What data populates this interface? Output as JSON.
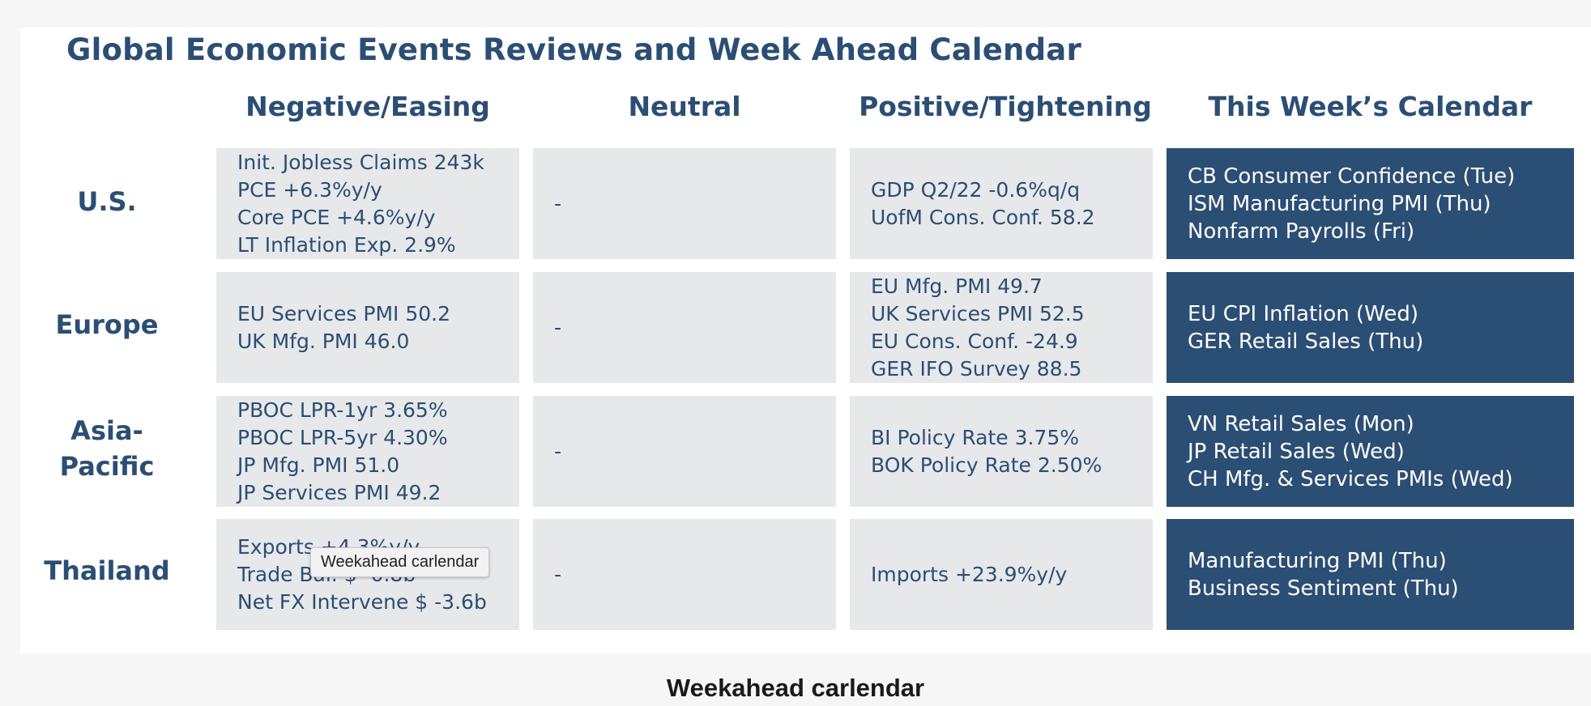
{
  "title": "Global Economic Events Reviews and Week Ahead Calendar",
  "columns": [
    "Negative/Easing",
    "Neutral",
    "Positive/Tightening",
    "This Week’s Calendar"
  ],
  "rows": [
    {
      "label": [
        "U.S."
      ],
      "negative": [
        "Init. Jobless Claims 243k",
        "PCE +6.3%y/y",
        "Core PCE +4.6%y/y",
        "LT Inflation Exp. 2.9%"
      ],
      "neutral": [
        "-"
      ],
      "positive": [
        "GDP Q2/22 -0.6%q/q",
        "UofM Cons. Conf. 58.2"
      ],
      "calendar": [
        "CB Consumer Confidence (Tue)",
        "ISM Manufacturing PMI (Thu)",
        "Nonfarm Payrolls (Fri)"
      ]
    },
    {
      "label": [
        "Europe"
      ],
      "negative": [
        "EU Services PMI 50.2",
        "UK Mfg. PMI 46.0"
      ],
      "neutral": [
        "-"
      ],
      "positive": [
        "EU Mfg. PMI 49.7",
        "UK Services PMI 52.5",
        "EU Cons. Conf. -24.9",
        "GER IFO Survey 88.5"
      ],
      "calendar": [
        "EU CPI Inflation (Wed)",
        "GER Retail Sales (Thu)"
      ]
    },
    {
      "label": [
        "Asia-",
        "Pacific"
      ],
      "negative": [
        "PBOC LPR-1yr 3.65%",
        "PBOC LPR-5yr 4.30%",
        "JP Mfg. PMI 51.0",
        "JP Services PMI 49.2"
      ],
      "neutral": [
        "-"
      ],
      "positive": [
        "BI Policy Rate 3.75%",
        "BOK Policy Rate 2.50%"
      ],
      "calendar": [
        "VN Retail Sales (Mon)",
        "JP Retail Sales (Wed)",
        "CH Mfg. & Services PMIs (Wed)"
      ]
    },
    {
      "label": [
        "Thailand"
      ],
      "negative": [
        "Exports +4.3%y/y",
        "Trade Bal. $ -0.8b",
        "Net FX Intervene $ -3.6b"
      ],
      "neutral": [
        "-"
      ],
      "positive": [
        "Imports +23.9%y/y"
      ],
      "calendar": [
        "Manufacturing PMI (Thu)",
        "Business Sentiment (Thu)"
      ]
    }
  ],
  "tooltip": "Weekahead carlendar",
  "caption": "Weekahead carlendar",
  "colors": {
    "accent": "#2b4e74",
    "cell_bg": "#e7e8ea",
    "calendar_bg": "#2b4e74",
    "calendar_text": "#ffffff"
  }
}
